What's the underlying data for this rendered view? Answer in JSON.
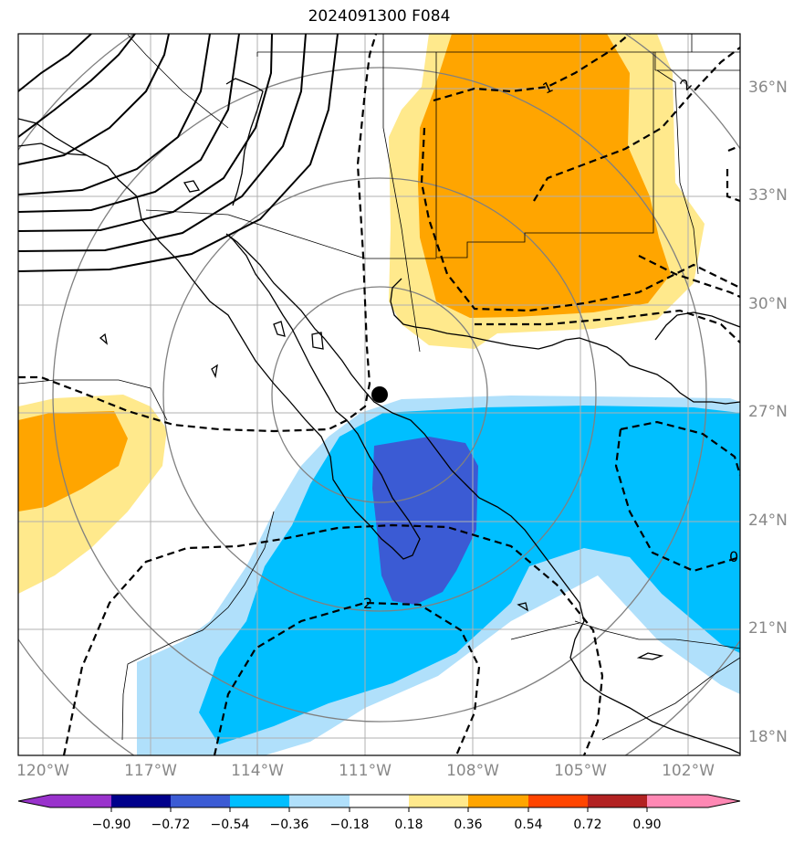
{
  "title": "2024091300 F084",
  "map": {
    "lon_range": [
      -121.2,
      -100.6
    ],
    "lat_range": [
      17.5,
      37.5
    ],
    "lat_ticks": [
      "36°N",
      "33°N",
      "30°N",
      "27°N",
      "24°N",
      "21°N",
      "18°N"
    ],
    "lon_ticks": [
      "120°W",
      "117°W",
      "114°W",
      "111°W",
      "108°W",
      "105°W",
      "102°W"
    ],
    "contour_labels": [
      "1",
      "2",
      "0",
      "2"
    ],
    "marker": "storm-center-dot",
    "colors": {
      "dark_blue": "#3b5bd4",
      "cyan": "#00bfff",
      "light_blue": "#b0e0fb",
      "light_yellow": "#ffe98c",
      "orange": "#ffa500",
      "grid": "#b0b0b0",
      "range_rings": "#808080"
    }
  },
  "colorbar": {
    "labels": [
      "−0.90",
      "−0.72",
      "−0.54",
      "−0.36",
      "−0.18",
      "0.18",
      "0.36",
      "0.54",
      "0.72",
      "0.90"
    ],
    "colors": [
      "#9932cc",
      "#9932cc",
      "#00008b",
      "#3b5bd4",
      "#00bfff",
      "#b0e0fb",
      "#ffffff",
      "#ffe98c",
      "#ffa500",
      "#ff4500",
      "#b22222",
      "#ff88b4"
    ]
  }
}
